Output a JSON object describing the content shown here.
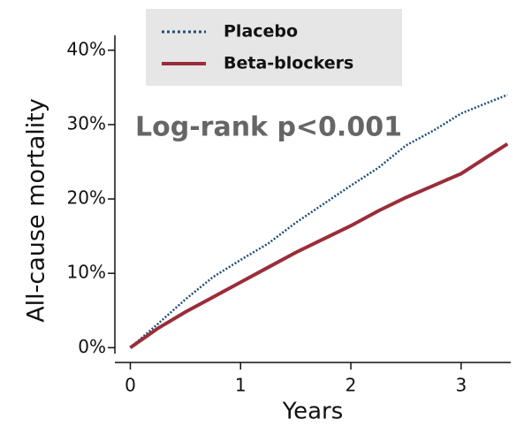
{
  "chart_data": {
    "type": "line",
    "ylabel": "All-cause mortality",
    "xlabel": "Years",
    "annotation": "Log-rank p<0.001",
    "x": [
      0,
      0.25,
      0.5,
      0.75,
      1,
      1.25,
      1.5,
      1.75,
      2,
      2.25,
      2.5,
      2.75,
      3,
      3.25,
      3.42
    ],
    "series": [
      {
        "name": "Placebo",
        "color": "#1f4e79",
        "dash": "dotted",
        "values": [
          0,
          3.2,
          6.5,
          9.5,
          11.8,
          14.0,
          16.8,
          19.3,
          21.8,
          24.2,
          27.2,
          29.2,
          31.5,
          33.0,
          34.0
        ]
      },
      {
        "name": "Beta-blockers",
        "color": "#9b2d3a",
        "dash": "solid",
        "values": [
          0,
          2.6,
          4.8,
          6.8,
          8.8,
          10.8,
          12.8,
          14.6,
          16.4,
          18.4,
          20.2,
          21.8,
          23.4,
          25.8,
          27.4
        ]
      }
    ],
    "xlim": [
      -0.14,
      3.45
    ],
    "ylim": [
      -0.8,
      42
    ],
    "xticks": [
      0,
      1,
      2,
      3
    ],
    "yticks": [
      {
        "value": 0,
        "label": "0%"
      },
      {
        "value": 10,
        "label": "10%"
      },
      {
        "value": 20,
        "label": "20%"
      },
      {
        "value": 30,
        "label": "30%"
      },
      {
        "value": 40,
        "label": "40%"
      }
    ],
    "legend": "top"
  }
}
